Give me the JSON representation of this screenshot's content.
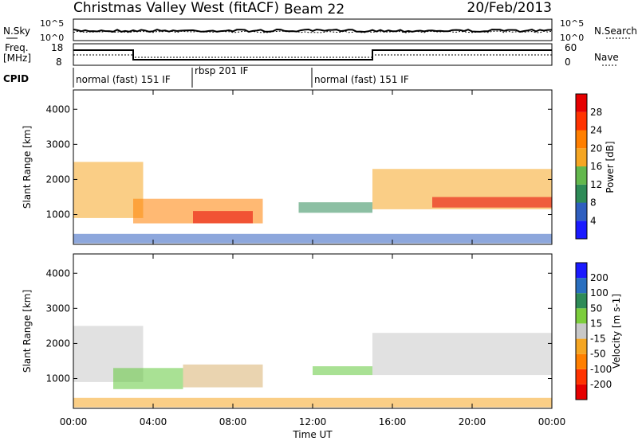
{
  "header": {
    "station": "Christmas Valley West (fitACF)",
    "beam": "Beam 22",
    "date": "20/Feb/2013"
  },
  "top_panels": {
    "nsky_label": "N.Sky",
    "nsearch_label": "N.Search",
    "noise_left_ticks": [
      "10^5",
      "10^0"
    ],
    "noise_right_ticks": [
      "10^5",
      "10^0"
    ],
    "freq_label": "Freq.",
    "freq_unit": "[MHz]",
    "freq_ticks": [
      "18",
      "8"
    ],
    "nave_label": "Nave",
    "nave_ticks": [
      "60",
      "0"
    ],
    "cpid_label": "CPID",
    "cpid_segments": [
      "normal (fast) 151 IF",
      "rbsp 201 IF",
      "normal (fast) 151 IF"
    ]
  },
  "chart_data": [
    {
      "type": "heatmap",
      "title": "",
      "xlabel": "Time UT",
      "ylabel": "Slant Range [km]",
      "x_ticks": [
        "00:00",
        "04:00",
        "08:00",
        "12:00",
        "16:00",
        "20:00",
        "00:00"
      ],
      "y_ticks": [
        "1000",
        "2000",
        "3000",
        "4000"
      ],
      "ylim": [
        150,
        4550
      ],
      "colorbar": {
        "label": "Power [dB]",
        "ticks": [
          "4",
          "8",
          "12",
          "16",
          "20",
          "24",
          "28"
        ],
        "colors": [
          "#1a1aff",
          "#2f5fbf",
          "#2e8b57",
          "#63b84d",
          "#f5a623",
          "#ff7f00",
          "#ff3300",
          "#e60000"
        ]
      },
      "echo_regions": [
        {
          "t0": 0.0,
          "t1": 3.5,
          "r0": 900,
          "r1": 2500,
          "level": 4
        },
        {
          "t0": 3.0,
          "t1": 9.5,
          "r0": 750,
          "r1": 1450,
          "level": 5
        },
        {
          "t0": 6.0,
          "t1": 9.0,
          "r0": 750,
          "r1": 1100,
          "level": 7
        },
        {
          "t0": 11.3,
          "t1": 15.0,
          "r0": 1050,
          "r1": 1350,
          "level": 2
        },
        {
          "t0": 15.0,
          "t1": 24.0,
          "r0": 1150,
          "r1": 2300,
          "level": 4
        },
        {
          "t0": 18.0,
          "t1": 24.0,
          "r0": 1200,
          "r1": 1500,
          "level": 7
        },
        {
          "t0": 0.0,
          "t1": 24.0,
          "r0": 180,
          "r1": 450,
          "level": 1
        }
      ]
    },
    {
      "type": "heatmap",
      "title": "",
      "xlabel": "Time UT",
      "ylabel": "Slant Range [km]",
      "x_ticks": [
        "00:00",
        "04:00",
        "08:00",
        "12:00",
        "16:00",
        "20:00",
        "00:00"
      ],
      "y_ticks": [
        "1000",
        "2000",
        "3000",
        "4000"
      ],
      "ylim": [
        150,
        4550
      ],
      "colorbar": {
        "label": "Velocity [m s-1]",
        "ticks": [
          "200",
          "100",
          "50",
          "15",
          "-15",
          "-50",
          "-100",
          "-200"
        ],
        "colors": [
          "#1a1aff",
          "#2a6fbf",
          "#2e8b57",
          "#7ccd3c",
          "#c8c8c8",
          "#f5a623",
          "#ff7f00",
          "#ff3300",
          "#e60000"
        ]
      },
      "echo_regions": [
        {
          "t0": 0.0,
          "t1": 3.5,
          "r0": 900,
          "r1": 2500,
          "vel": "ground"
        },
        {
          "t0": 2.0,
          "t1": 5.5,
          "r0": 700,
          "r1": 1300,
          "vel": "+50"
        },
        {
          "t0": 5.5,
          "t1": 9.5,
          "r0": 750,
          "r1": 1400,
          "vel": "ground/-15"
        },
        {
          "t0": 12.0,
          "t1": 15.0,
          "r0": 1100,
          "r1": 1350,
          "vel": "+50"
        },
        {
          "t0": 15.0,
          "t1": 24.0,
          "r0": 1100,
          "r1": 2300,
          "vel": "ground"
        },
        {
          "t0": 0.0,
          "t1": 24.0,
          "r0": 180,
          "r1": 450,
          "vel": "-50"
        }
      ]
    }
  ]
}
